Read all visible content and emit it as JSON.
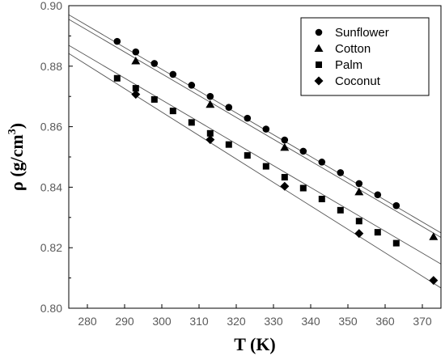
{
  "chart_data": {
    "type": "scatter",
    "xlabel_main": "T (K)",
    "ylabel_main": "ρ (g/cm",
    "ylabel_sup": "3",
    "ylabel_close": ")",
    "xlim": [
      275,
      375
    ],
    "ylim": [
      0.8,
      0.9
    ],
    "x_ticks": [
      280,
      290,
      300,
      310,
      320,
      330,
      340,
      350,
      360,
      370
    ],
    "y_ticks": [
      0.8,
      0.82,
      0.84,
      0.86,
      0.88,
      0.9
    ],
    "x_tick_labels": [
      "280",
      "290",
      "300",
      "310",
      "320",
      "330",
      "340",
      "350",
      "360",
      "370"
    ],
    "y_tick_labels": [
      "0.80",
      "0.82",
      "0.84",
      "0.86",
      "0.88",
      "0.90"
    ],
    "grid": false,
    "legend_position": "top-right",
    "series": [
      {
        "name": "Sunflower",
        "marker": "circle",
        "x": [
          288,
          293,
          298,
          303,
          308,
          313,
          318,
          323,
          328,
          333,
          338,
          343,
          348,
          353,
          358,
          363
        ],
        "y": [
          0.8882,
          0.8847,
          0.8809,
          0.8773,
          0.8737,
          0.87,
          0.8664,
          0.8628,
          0.8592,
          0.8556,
          0.8519,
          0.8483,
          0.8448,
          0.8412,
          0.8375,
          0.8339
        ]
      },
      {
        "name": "Cotton",
        "marker": "triangle",
        "x": [
          293,
          313,
          333,
          353,
          373
        ],
        "y": [
          0.8817,
          0.8673,
          0.8531,
          0.8384,
          0.8236
        ]
      },
      {
        "name": "Palm",
        "marker": "square",
        "x": [
          288,
          293,
          298,
          303,
          308,
          313,
          318,
          323,
          328,
          333,
          338,
          343,
          348,
          353,
          358,
          363
        ],
        "y": [
          0.876,
          0.8727,
          0.869,
          0.8652,
          0.8614,
          0.8578,
          0.8541,
          0.8505,
          0.8469,
          0.8433,
          0.8397,
          0.8361,
          0.8324,
          0.8288,
          0.8251,
          0.8215
        ]
      },
      {
        "name": "Coconut",
        "marker": "diamond",
        "x": [
          293,
          313,
          333,
          353,
          373
        ],
        "y": [
          0.8707,
          0.8557,
          0.8403,
          0.8247,
          0.8092
        ]
      }
    ],
    "fit_lines": [
      {
        "x": [
          275,
          375
        ],
        "y": [
          0.897,
          0.8249
        ]
      },
      {
        "x": [
          275,
          375
        ],
        "y": [
          0.8955,
          0.8234
        ]
      },
      {
        "x": [
          275,
          375
        ],
        "y": [
          0.8869,
          0.8146
        ]
      },
      {
        "x": [
          275,
          375
        ],
        "y": [
          0.8842,
          0.8067
        ]
      }
    ]
  }
}
